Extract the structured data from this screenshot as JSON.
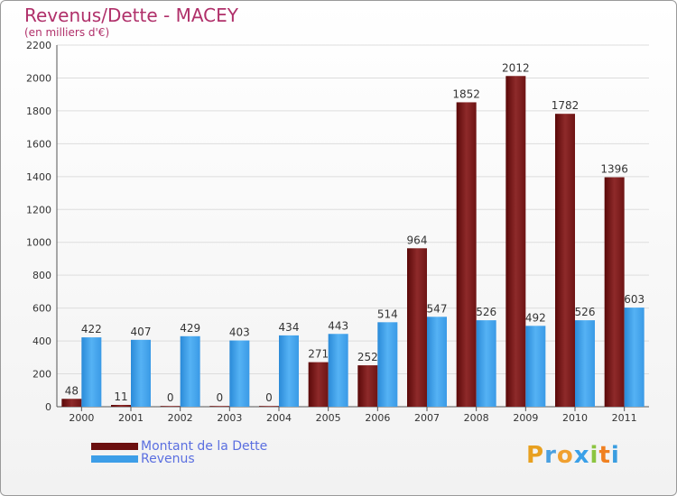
{
  "chart_data": {
    "type": "bar",
    "title": "Revenus/Dette - MACEY",
    "subtitle": "(en milliers d'€)",
    "categories": [
      "2000",
      "2001",
      "2002",
      "2003",
      "2004",
      "2005",
      "2006",
      "2007",
      "2008",
      "2009",
      "2010",
      "2011"
    ],
    "series": [
      {
        "name": "Montant de la Dette",
        "color": "#8b1a1a",
        "values": [
          48,
          11,
          0,
          0,
          0,
          271,
          252,
          964,
          1852,
          2012,
          1782,
          1396
        ]
      },
      {
        "name": "Revenus",
        "color": "#3d9ee8",
        "values": [
          422,
          407,
          429,
          403,
          434,
          443,
          514,
          547,
          526,
          492,
          526,
          603
        ]
      }
    ],
    "ylim": [
      0,
      2200
    ],
    "yticks": [
      0,
      200,
      400,
      600,
      800,
      1000,
      1200,
      1400,
      1600,
      1800,
      2000,
      2200
    ],
    "grid": true,
    "xlabel": "",
    "ylabel": ""
  },
  "legend": {
    "debt_label": "Montant de la Dette",
    "revenue_label": "Revenus"
  },
  "logo": {
    "letters": [
      "P",
      "r",
      "o",
      "x",
      "i",
      "t",
      "i"
    ],
    "colors": [
      "#e8a020",
      "#4aa0e0",
      "#f0a030",
      "#3aa0e8",
      "#8cc540",
      "#f08020",
      "#3a9de0"
    ]
  }
}
